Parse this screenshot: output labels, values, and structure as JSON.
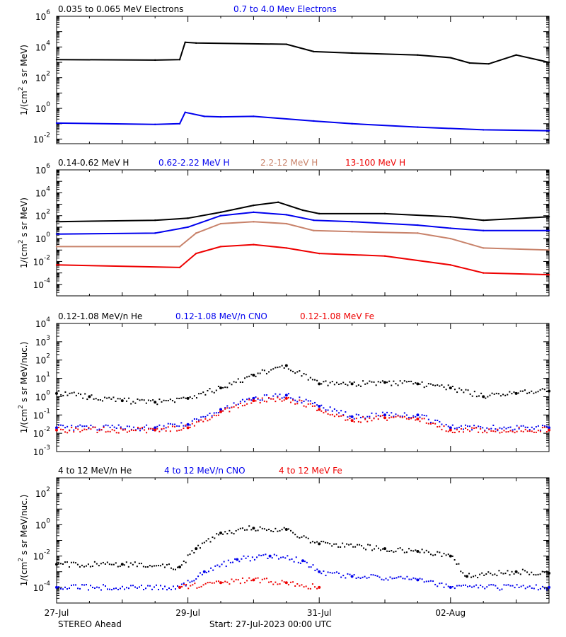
{
  "colors": {
    "black": "#000000",
    "blue": "#0000ee",
    "tan": "#c8826a",
    "red": "#ee0000"
  },
  "footer": {
    "left": "STEREO Ahead",
    "center": "Start: 27-Jul-2023 00:00 UTC"
  },
  "chart_data": [
    {
      "type": "line",
      "panel": 1,
      "log_y": true,
      "ylim": [
        0.005,
        1000000
      ],
      "yticks": [
        {
          "v": 0.01,
          "e": "-2"
        },
        {
          "v": 1,
          "e": "0"
        },
        {
          "v": 100,
          "e": "2"
        },
        {
          "v": 10000,
          "e": "4"
        },
        {
          "v": 1000000,
          "e": "6"
        }
      ],
      "ylabel_pre": "1/(cm",
      "ylabel_sup": "2",
      "ylabel_post": " s sr MeV)",
      "xlim": [
        "2023-07-27",
        "2023-08-03T12:00"
      ],
      "xticks": [
        "27-Jul",
        "29-Jul",
        "31-Jul",
        "02-Aug"
      ],
      "legend": [
        {
          "name": "0.035 to 0.065 MeV Electrons",
          "color": "#000000"
        },
        {
          "name": "0.7 to 4.0 Mev Electrons",
          "color": "#0000ee"
        }
      ],
      "series": [
        {
          "name": "0.035 to 0.065 MeV Electrons",
          "color": "#000000",
          "style": "line",
          "x": [
            "2023-07-27T00:00",
            "2023-07-28T12:00",
            "2023-07-28T21:00",
            "2023-07-28T23:00",
            "2023-07-29T03:00",
            "2023-07-30T12:00",
            "2023-07-30T22:00",
            "2023-07-31T12:00",
            "2023-08-01T12:00",
            "2023-08-02T00:00",
            "2023-08-02T07:00",
            "2023-08-02T14:00",
            "2023-08-03T00:00",
            "2023-08-03T12:00"
          ],
          "y": [
            1500,
            1400,
            1500,
            20000,
            18000,
            15000,
            5000,
            4000,
            3000,
            2000,
            900,
            800,
            3000,
            1000
          ]
        },
        {
          "name": "0.7 to 4.0 Mev Electrons",
          "color": "#0000ee",
          "style": "line",
          "x": [
            "2023-07-27T00:00",
            "2023-07-28T12:00",
            "2023-07-28T21:00",
            "2023-07-28T23:00",
            "2023-07-29T06:00",
            "2023-07-29T12:00",
            "2023-07-30T00:00",
            "2023-07-30T22:00",
            "2023-07-31T12:00",
            "2023-08-01T12:00",
            "2023-08-02T12:00",
            "2023-08-03T12:00"
          ],
          "y": [
            0.11,
            0.09,
            0.1,
            0.55,
            0.3,
            0.28,
            0.3,
            0.15,
            0.1,
            0.06,
            0.04,
            0.035
          ]
        }
      ]
    },
    {
      "type": "line",
      "panel": 2,
      "log_y": true,
      "ylim": [
        1e-05,
        1000000
      ],
      "yticks": [
        {
          "v": 0.0001,
          "e": "-4"
        },
        {
          "v": 0.01,
          "e": "-2"
        },
        {
          "v": 1,
          "e": "0"
        },
        {
          "v": 100,
          "e": "2"
        },
        {
          "v": 10000,
          "e": "4"
        },
        {
          "v": 1000000,
          "e": "6"
        }
      ],
      "ylabel_pre": "1/(cm",
      "ylabel_sup": "2",
      "ylabel_post": " s sr MeV)",
      "xlim": [
        "2023-07-27",
        "2023-08-03T12:00"
      ],
      "xticks": [
        "27-Jul",
        "29-Jul",
        "31-Jul",
        "02-Aug"
      ],
      "legend": [
        {
          "name": "0.14-0.62 MeV H",
          "color": "#000000"
        },
        {
          "name": "0.62-2.22 MeV H",
          "color": "#0000ee"
        },
        {
          "name": "2.2-12 MeV H",
          "color": "#c8826a"
        },
        {
          "name": "13-100 MeV H",
          "color": "#ee0000"
        }
      ],
      "series": [
        {
          "name": "0.14-0.62 MeV H",
          "color": "#000000",
          "style": "line",
          "x": [
            "2023-07-27T00:00",
            "2023-07-28T12:00",
            "2023-07-29T00:00",
            "2023-07-29T12:00",
            "2023-07-30T00:00",
            "2023-07-30T09:00",
            "2023-07-30T18:00",
            "2023-07-31T00:00",
            "2023-08-01T00:00",
            "2023-08-02T00:00",
            "2023-08-02T12:00",
            "2023-08-03T12:00"
          ],
          "y": [
            30,
            40,
            60,
            200,
            800,
            1500,
            300,
            150,
            150,
            80,
            40,
            80
          ]
        },
        {
          "name": "0.62-2.22 MeV H",
          "color": "#0000ee",
          "style": "line",
          "x": [
            "2023-07-27T00:00",
            "2023-07-28T12:00",
            "2023-07-29T00:00",
            "2023-07-29T12:00",
            "2023-07-30T00:00",
            "2023-07-30T12:00",
            "2023-07-30T22:00",
            "2023-07-31T12:00",
            "2023-08-01T12:00",
            "2023-08-02T00:00",
            "2023-08-02T12:00",
            "2023-08-03T12:00"
          ],
          "y": [
            2.5,
            3,
            10,
            100,
            200,
            120,
            40,
            30,
            15,
            8,
            5,
            5
          ]
        },
        {
          "name": "2.2-12 MeV H",
          "color": "#c8826a",
          "style": "line",
          "x": [
            "2023-07-27T00:00",
            "2023-07-28T21:00",
            "2023-07-29T03:00",
            "2023-07-29T12:00",
            "2023-07-30T00:00",
            "2023-07-30T12:00",
            "2023-07-30T22:00",
            "2023-07-31T12:00",
            "2023-08-01T12:00",
            "2023-08-02T00:00",
            "2023-08-02T12:00",
            "2023-08-03T12:00"
          ],
          "y": [
            0.2,
            0.2,
            3,
            20,
            30,
            20,
            5,
            4,
            3,
            1,
            0.15,
            0.1
          ]
        },
        {
          "name": "13-100 MeV H",
          "color": "#ee0000",
          "style": "line",
          "x": [
            "2023-07-27T00:00",
            "2023-07-28T21:00",
            "2023-07-29T03:00",
            "2023-07-29T12:00",
            "2023-07-30T00:00",
            "2023-07-30T12:00",
            "2023-07-31T00:00",
            "2023-08-01T00:00",
            "2023-08-02T00:00",
            "2023-08-02T12:00",
            "2023-08-03T12:00"
          ],
          "y": [
            0.005,
            0.003,
            0.05,
            0.2,
            0.3,
            0.15,
            0.05,
            0.03,
            0.005,
            0.001,
            0.0007
          ]
        }
      ]
    },
    {
      "type": "scatter",
      "panel": 3,
      "log_y": true,
      "ylim": [
        0.001,
        10000
      ],
      "yticks": [
        {
          "v": 0.001,
          "e": "-3"
        },
        {
          "v": 0.01,
          "e": "-2"
        },
        {
          "v": 0.1,
          "e": "-1"
        },
        {
          "v": 1,
          "e": "0"
        },
        {
          "v": 10,
          "e": "1"
        },
        {
          "v": 100,
          "e": "2"
        },
        {
          "v": 1000,
          "e": "3"
        },
        {
          "v": 10000,
          "e": "4"
        }
      ],
      "ylabel_pre": "1/(cm",
      "ylabel_sup": "2",
      "ylabel_post": " s sr MeV/nuc.)",
      "xlim": [
        "2023-07-27",
        "2023-08-03T12:00"
      ],
      "xticks": [
        "27-Jul",
        "29-Jul",
        "31-Jul",
        "02-Aug"
      ],
      "legend": [
        {
          "name": "0.12-1.08 MeV/n He",
          "color": "#000000"
        },
        {
          "name": "0.12-1.08 MeV/n CNO",
          "color": "#0000ee"
        },
        {
          "name": "0.12-1.08 MeV Fe",
          "color": "#ee0000"
        }
      ],
      "series": [
        {
          "name": "0.12-1.08 MeV/n He",
          "color": "#000000",
          "style": "dots",
          "x": [
            "2023-07-27T00:00",
            "2023-07-27T12:00",
            "2023-07-28T00:00",
            "2023-07-28T12:00",
            "2023-07-29T00:00",
            "2023-07-29T12:00",
            "2023-07-30T00:00",
            "2023-07-30T12:00",
            "2023-07-31T00:00",
            "2023-07-31T12:00",
            "2023-08-01T00:00",
            "2023-08-01T12:00",
            "2023-08-02T00:00",
            "2023-08-02T12:00",
            "2023-08-03T00:00",
            "2023-08-03T12:00"
          ],
          "y": [
            1.5,
            1,
            0.6,
            0.5,
            0.8,
            3,
            15,
            50,
            5,
            5,
            6,
            5,
            3,
            1,
            1.5,
            2
          ]
        },
        {
          "name": "0.12-1.08 MeV/n CNO",
          "color": "#0000ee",
          "style": "dots",
          "x": [
            "2023-07-27T00:00",
            "2023-07-28T12:00",
            "2023-07-29T00:00",
            "2023-07-29T12:00",
            "2023-07-30T00:00",
            "2023-07-30T12:00",
            "2023-07-31T00:00",
            "2023-07-31T12:00",
            "2023-08-01T00:00",
            "2023-08-01T12:00",
            "2023-08-02T00:00",
            "2023-08-03T12:00"
          ],
          "y": [
            0.02,
            0.02,
            0.03,
            0.2,
            0.8,
            1.2,
            0.3,
            0.08,
            0.1,
            0.1,
            0.02,
            0.02
          ]
        },
        {
          "name": "0.12-1.08 MeV Fe",
          "color": "#ee0000",
          "style": "dots",
          "x": [
            "2023-07-27T00:00",
            "2023-07-28T12:00",
            "2023-07-29T00:00",
            "2023-07-29T12:00",
            "2023-07-30T00:00",
            "2023-07-30T12:00",
            "2023-07-31T00:00",
            "2023-07-31T12:00",
            "2023-08-01T00:00",
            "2023-08-01T12:00",
            "2023-08-02T00:00",
            "2023-08-03T12:00"
          ],
          "y": [
            0.015,
            0.015,
            0.02,
            0.15,
            0.6,
            0.8,
            0.2,
            0.05,
            0.07,
            0.06,
            0.015,
            0.015
          ]
        }
      ]
    },
    {
      "type": "scatter",
      "panel": 4,
      "log_y": true,
      "ylim": [
        1e-05,
        1000
      ],
      "yticks": [
        {
          "v": 0.0001,
          "e": "-4"
        },
        {
          "v": 0.01,
          "e": "-2"
        },
        {
          "v": 1,
          "e": "0"
        },
        {
          "v": 100,
          "e": "2"
        }
      ],
      "ylabel_pre": "1/(cm",
      "ylabel_sup": "2",
      "ylabel_post": " s sr MeV/nuc.)",
      "xlim": [
        "2023-07-27",
        "2023-08-03T12:00"
      ],
      "xticks": [
        "27-Jul",
        "29-Jul",
        "31-Jul",
        "02-Aug"
      ],
      "legend": [
        {
          "name": "4 to 12 MeV/n He",
          "color": "#000000"
        },
        {
          "name": "4 to 12 MeV/n CNO",
          "color": "#0000ee"
        },
        {
          "name": "4 to 12 MeV Fe",
          "color": "#ee0000"
        }
      ],
      "series": [
        {
          "name": "4 to 12 MeV/n He",
          "color": "#000000",
          "style": "dots",
          "x": [
            "2023-07-27T00:00",
            "2023-07-28T00:00",
            "2023-07-28T21:00",
            "2023-07-29T03:00",
            "2023-07-29T12:00",
            "2023-07-30T00:00",
            "2023-07-30T12:00",
            "2023-07-31T00:00",
            "2023-08-01T00:00",
            "2023-08-01T12:00",
            "2023-08-02T00:00",
            "2023-08-02T06:00",
            "2023-08-03T00:00",
            "2023-08-03T12:00"
          ],
          "y": [
            0.003,
            0.003,
            0.002,
            0.03,
            0.3,
            0.6,
            0.5,
            0.06,
            0.03,
            0.02,
            0.01,
            0.0005,
            0.001,
            0.0008
          ]
        },
        {
          "name": "4 to 12 MeV/n CNO",
          "color": "#0000ee",
          "style": "dots",
          "x": [
            "2023-07-27T00:00",
            "2023-07-28T21:00",
            "2023-07-29T06:00",
            "2023-07-29T18:00",
            "2023-07-30T06:00",
            "2023-07-30T18:00",
            "2023-07-31T00:00",
            "2023-07-31T12:00",
            "2023-08-01T12:00",
            "2023-08-02T00:00",
            "2023-08-03T12:00"
          ],
          "y": [
            0.0001,
            0.0001,
            0.001,
            0.006,
            0.01,
            0.005,
            0.001,
            0.0005,
            0.0003,
            0.0001,
            0.0001
          ]
        },
        {
          "name": "4 to 12 MeV Fe",
          "color": "#ee0000",
          "style": "dots",
          "x": [
            "2023-07-28T21:00",
            "2023-07-29T12:00",
            "2023-07-30T00:00",
            "2023-07-30T12:00",
            "2023-07-31T00:00"
          ],
          "y": [
            0.0001,
            0.0002,
            0.0003,
            0.0002,
            0.0001
          ]
        }
      ]
    }
  ]
}
